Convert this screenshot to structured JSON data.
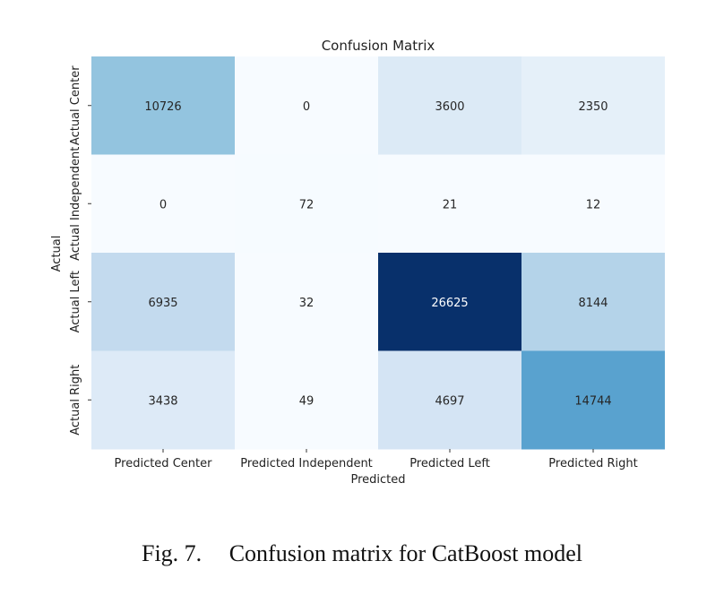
{
  "caption": {
    "fig_label": "Fig. 7.",
    "text": "Confusion matrix for CatBoost model"
  },
  "chart_data": {
    "type": "heatmap",
    "title": "Confusion Matrix",
    "xlabel": "Predicted",
    "ylabel": "Actual",
    "colormap": "Blues",
    "vmin": 0,
    "vmax": 26625,
    "colorbar": false,
    "x_categories": [
      "Predicted Center",
      "Predicted Independent",
      "Predicted Left",
      "Predicted Right"
    ],
    "y_categories": [
      "Actual Center",
      "Actual Independent",
      "Actual Left",
      "Actual Right"
    ],
    "values": [
      [
        10726,
        0,
        3600,
        2350
      ],
      [
        0,
        72,
        21,
        12
      ],
      [
        6935,
        32,
        26625,
        8144
      ],
      [
        3438,
        49,
        4697,
        14744
      ]
    ]
  }
}
